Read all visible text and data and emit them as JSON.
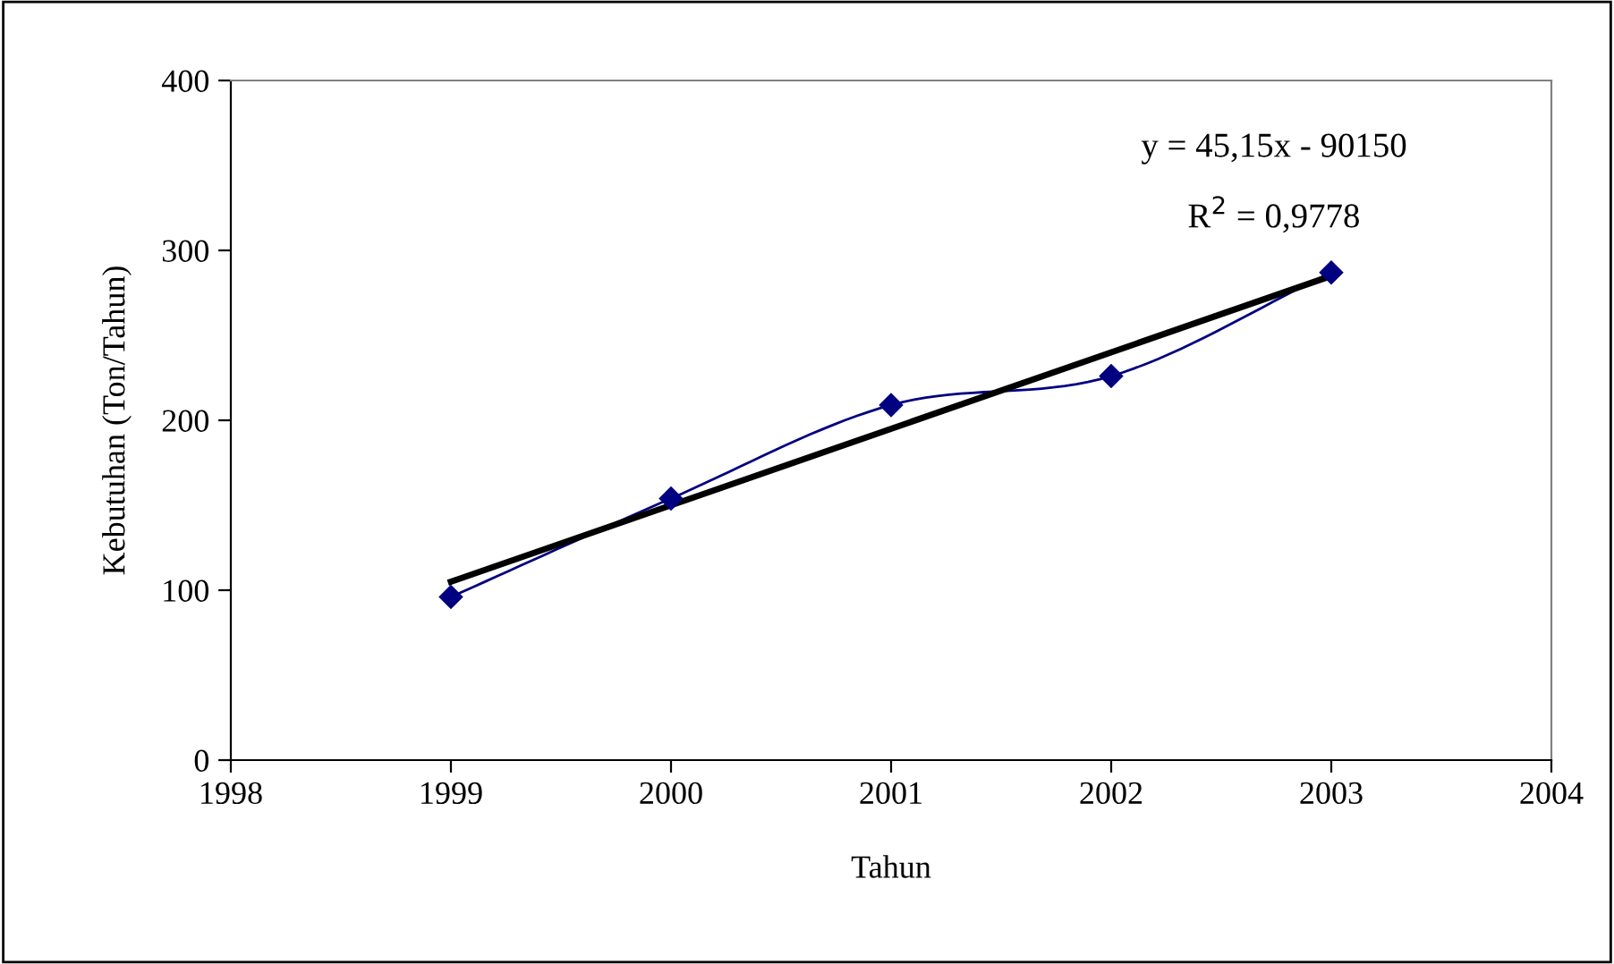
{
  "chart_data": {
    "type": "line",
    "xlabel": "Tahun",
    "ylabel": "Kebutuhan (Ton/Tahun)",
    "x": [
      1999,
      2000,
      2001,
      2002,
      2003
    ],
    "series": [
      {
        "color": "#000080",
        "values": [
          96,
          154,
          209,
          226,
          287
        ],
        "marker": "diamond"
      },
      {
        "type": "line",
        "x": [
          1999,
          2003
        ],
        "color": "#000000",
        "values": [
          105,
          285
        ],
        "marker": "none"
      }
    ],
    "xlim": [
      1998,
      2004
    ],
    "xticks": [
      1998,
      1999,
      2000,
      2001,
      2002,
      2003,
      2004
    ],
    "ylim": [
      0,
      400
    ],
    "yticks": [
      0,
      100,
      200,
      300,
      400
    ],
    "grid": false,
    "legend": false,
    "annotations": [
      "y = 45,15x - 90150",
      "R$^{2}$ = 0,9778"
    ]
  }
}
